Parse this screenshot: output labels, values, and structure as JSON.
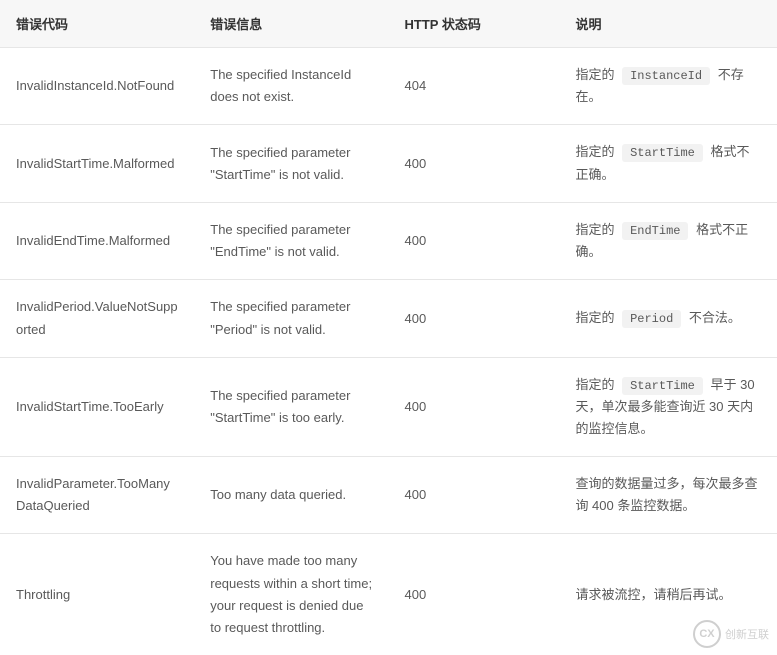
{
  "table": {
    "headers": {
      "code": "错误代码",
      "message": "错误信息",
      "status": "HTTP 状态码",
      "desc": "说明"
    },
    "rows": [
      {
        "code": "InvalidInstanceId.NotFound",
        "message": "The specified InstanceId does not exist.",
        "status": "404",
        "desc_pre": "指定的 ",
        "desc_param": "InstanceId",
        "desc_post": " 不存在。"
      },
      {
        "code": "InvalidStartTime.Malformed",
        "message": "The specified parameter \"StartTime\" is not valid.",
        "status": "400",
        "desc_pre": "指定的 ",
        "desc_param": "StartTime",
        "desc_post": " 格式不正确。"
      },
      {
        "code": "InvalidEndTime.Malformed",
        "message": "The specified parameter \"EndTime\" is not valid.",
        "status": "400",
        "desc_pre": "指定的 ",
        "desc_param": "EndTime",
        "desc_post": " 格式不正确。"
      },
      {
        "code": "InvalidPeriod.ValueNotSupported",
        "message": "The specified parameter \"Period\" is not valid.",
        "status": "400",
        "desc_pre": "指定的 ",
        "desc_param": "Period",
        "desc_post": " 不合法。"
      },
      {
        "code": "InvalidStartTime.TooEarly",
        "message": "The specified parameter \"StartTime\" is too early.",
        "status": "400",
        "desc_pre": "指定的 ",
        "desc_param": "StartTime",
        "desc_post": " 早于 30 天，单次最多能查询近 30 天内的监控信息。"
      },
      {
        "code": "InvalidParameter.TooManyDataQueried",
        "message": "Too many data queried.",
        "status": "400",
        "desc_pre": "",
        "desc_param": "",
        "desc_post": "查询的数据量过多，每次最多查询 400 条监控数据。"
      },
      {
        "code": "Throttling",
        "message": "You have made too many requests within a short time; your request is denied due to request throttling.",
        "status": "400",
        "desc_pre": "",
        "desc_param": "",
        "desc_post": "请求被流控，请稍后再试。"
      }
    ]
  },
  "watermark": {
    "icon_text": "CX",
    "text": "创新互联"
  },
  "styles": {
    "header_bg": "#f7f7f7",
    "border_color": "#e6e6e6",
    "text_color": "#333",
    "cell_color": "#595959",
    "param_bg": "#f2f2f2",
    "font_size_body": 13,
    "font_size_code": 12,
    "line_height": 1.7
  }
}
